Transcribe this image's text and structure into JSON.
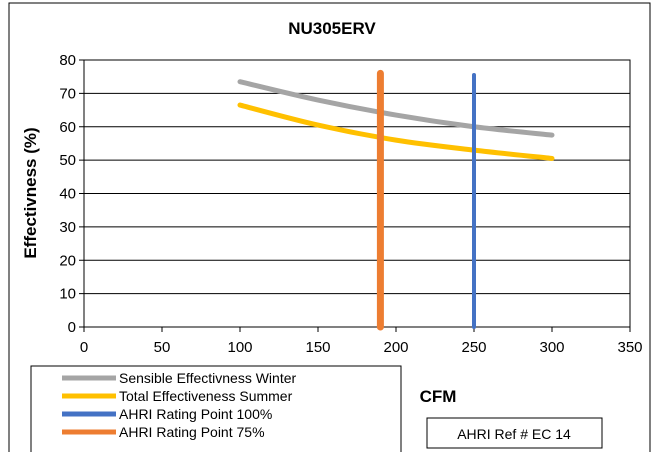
{
  "chart_data": {
    "type": "line",
    "title": "NU305ERV",
    "xlabel": "CFM",
    "ylabel": "Effectivness (%)",
    "xlim": [
      0,
      350
    ],
    "ylim": [
      0,
      80
    ],
    "xticks": [
      0,
      50,
      100,
      150,
      200,
      250,
      300,
      350
    ],
    "yticks": [
      0,
      10,
      20,
      30,
      40,
      50,
      60,
      70,
      80
    ],
    "grid": "horizontal",
    "legend_position": "bottom-left",
    "series": [
      {
        "name": "Sensible Effectivness Winter",
        "color": "#a5a5a5",
        "x": [
          100,
          150,
          200,
          250,
          300
        ],
        "y": [
          73.5,
          68,
          63.5,
          60,
          57.5
        ]
      },
      {
        "name": "Total Effectiveness Summer",
        "color": "#ffc000",
        "x": [
          100,
          150,
          200,
          250,
          300
        ],
        "y": [
          66.5,
          60.5,
          56,
          53,
          50.5
        ]
      },
      {
        "name": "AHRI Rating Point 100%",
        "color": "#4472c4",
        "x": [
          250,
          250
        ],
        "y": [
          0,
          75.5
        ]
      },
      {
        "name": "AHRI Rating Point 75%",
        "color": "#ed7d31",
        "x": [
          190,
          190
        ],
        "y": [
          0,
          76
        ]
      }
    ],
    "annotation": "AHRI Ref # EC 14"
  }
}
